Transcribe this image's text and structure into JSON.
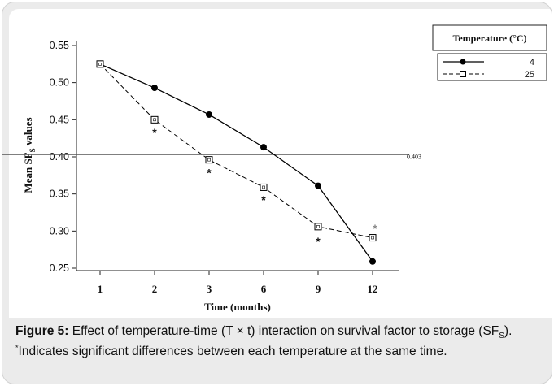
{
  "chart_data": {
    "type": "line",
    "categories": [
      "1",
      "2",
      "3",
      "6",
      "9",
      "12"
    ],
    "ylabel": "Mean SF",
    "ylabel_sub": "S",
    "ylabel_suffix": " values",
    "xlabel": "Time (months)",
    "ylim": [
      0.25,
      0.55
    ],
    "yticks": [
      "0.25",
      "0.30",
      "0.35",
      "0.40",
      "0.45",
      "0.50",
      "0.55"
    ],
    "reference_line": {
      "value": 0.403,
      "label": "0.403"
    },
    "legend": {
      "title": "Temperature (°C)",
      "position": "top-right"
    },
    "series": [
      {
        "name": "4",
        "marker": "filled-circle",
        "line": "solid",
        "color": "#000000",
        "values": [
          0.525,
          0.493,
          0.457,
          0.413,
          0.361,
          0.259
        ]
      },
      {
        "name": "25",
        "marker": "open-square",
        "line": "dashed",
        "color": "#000000",
        "values": [
          0.525,
          0.45,
          0.396,
          0.359,
          0.306,
          0.291
        ]
      }
    ],
    "significance": {
      "symbol": "*",
      "categories": [
        "2",
        "3",
        "6",
        "9",
        "12"
      ],
      "values": [
        0.434,
        0.38,
        0.343,
        0.287,
        0.305
      ]
    }
  },
  "caption": {
    "figure_label": "Figure 5:",
    "text_before": " Effect of temperature-time (T × t) interaction on survival factor to storage (SF",
    "text_sub": "S",
    "text_after": ").",
    "footnote_mark": "*",
    "footnote": "Indicates significant differences between each temperature at the same time."
  }
}
